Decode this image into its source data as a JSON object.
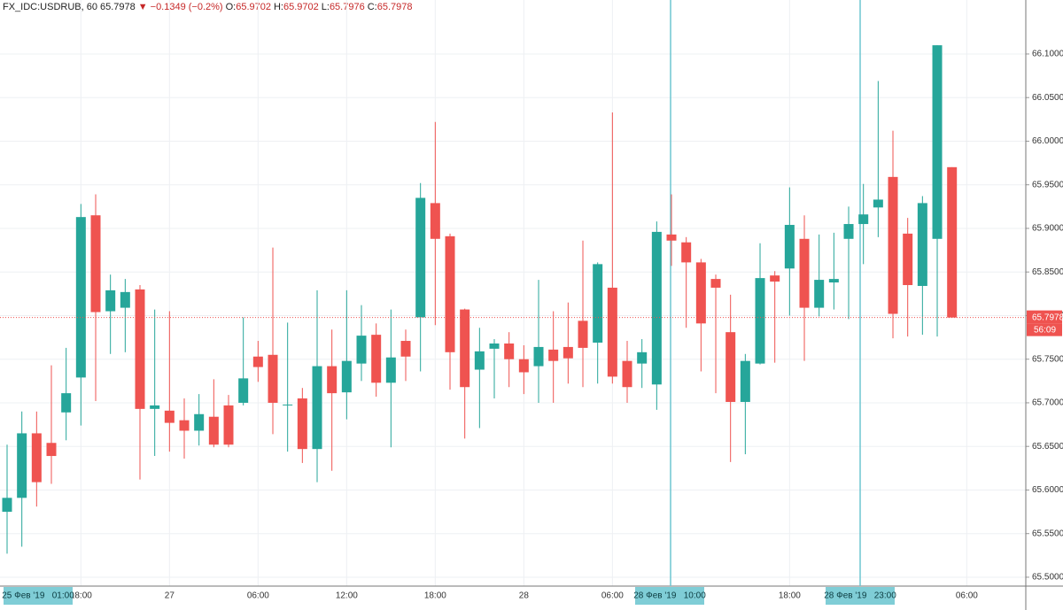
{
  "chart_data": {
    "type": "candlestick",
    "header": {
      "symbol": "FX_IDC:USDRUB, 60",
      "price": "65.7978",
      "arrow": "▼",
      "change": "−0.1349 (−0.2%)",
      "ohlc": [
        {
          "key": "O:",
          "value": "65.9702"
        },
        {
          "key": "H:",
          "value": "65.9702"
        },
        {
          "key": "L:",
          "value": "65.7976"
        },
        {
          "key": "C:",
          "value": "65.7978"
        }
      ]
    },
    "categories": [
      null,
      null,
      null,
      null,
      null,
      "18:00",
      null,
      null,
      null,
      null,
      null,
      "27",
      null,
      null,
      null,
      null,
      null,
      "06:00",
      null,
      null,
      null,
      null,
      null,
      "12:00",
      null,
      null,
      null,
      null,
      null,
      "18:00",
      null,
      null,
      null,
      null,
      null,
      "28",
      null,
      null,
      null,
      null,
      null,
      "06:00",
      null,
      null,
      null,
      null,
      null,
      null,
      null,
      null,
      null,
      null,
      null,
      "18:00",
      null,
      null,
      null,
      null,
      null,
      null,
      null,
      null,
      null,
      null,
      null,
      "06:00"
    ],
    "open": [
      65.575,
      65.591,
      65.665,
      65.654,
      65.689,
      65.729,
      65.915,
      65.805,
      65.809,
      65.83,
      65.693,
      65.691,
      65.68,
      65.668,
      65.684,
      65.697,
      65.7,
      65.753,
      65.755,
      65.697,
      65.705,
      65.647,
      65.742,
      65.712,
      65.745,
      65.778,
      65.723,
      65.771,
      65.798,
      65.929,
      65.891,
      65.807,
      65.738,
      65.762,
      65.768,
      65.75,
      65.742,
      65.761,
      65.764,
      65.794,
      65.769,
      65.832,
      65.748,
      65.745,
      65.721,
      65.893,
      65.884,
      65.861,
      65.842,
      65.781,
      65.701,
      65.745,
      65.846,
      65.854,
      65.888,
      65.809,
      65.838,
      65.888,
      65.905,
      65.924,
      65.959,
      65.894,
      65.834,
      65.888,
      65.9702,
      null
    ],
    "high": [
      65.652,
      65.69,
      65.69,
      65.743,
      65.763,
      65.928,
      65.939,
      65.847,
      65.842,
      65.835,
      65.807,
      65.805,
      65.705,
      65.71,
      65.727,
      65.709,
      65.798,
      65.771,
      65.878,
      65.792,
      65.717,
      65.829,
      65.784,
      65.829,
      65.812,
      65.791,
      65.807,
      65.784,
      65.952,
      66.022,
      65.894,
      65.808,
      65.786,
      65.773,
      65.781,
      65.766,
      65.841,
      65.805,
      65.815,
      65.886,
      65.861,
      66.033,
      65.771,
      65.773,
      65.908,
      65.939,
      65.89,
      65.865,
      65.847,
      65.824,
      65.756,
      65.883,
      65.851,
      65.947,
      65.915,
      65.893,
      65.895,
      65.925,
      65.951,
      66.069,
      66.012,
      65.912,
      65.937,
      66.11,
      65.9702,
      null
    ],
    "low": [
      65.527,
      65.535,
      65.581,
      65.607,
      65.657,
      65.674,
      65.702,
      65.756,
      65.758,
      65.612,
      65.639,
      65.644,
      65.636,
      65.651,
      65.649,
      65.649,
      65.697,
      65.724,
      65.664,
      65.644,
      65.631,
      65.609,
      65.622,
      65.681,
      65.725,
      65.707,
      65.649,
      65.725,
      65.736,
      65.789,
      65.715,
      65.659,
      65.671,
      65.705,
      65.718,
      65.71,
      65.7,
      65.7,
      65.722,
      65.718,
      65.722,
      65.722,
      65.7,
      65.717,
      65.692,
      65.857,
      65.786,
      65.736,
      65.711,
      65.632,
      65.641,
      65.744,
      65.746,
      65.8,
      65.748,
      65.799,
      65.807,
      65.796,
      65.859,
      65.89,
      65.774,
      65.776,
      65.778,
      65.776,
      65.7976,
      null
    ],
    "close": [
      65.591,
      65.665,
      65.609,
      65.639,
      65.711,
      65.913,
      65.804,
      65.829,
      65.827,
      65.693,
      65.697,
      65.677,
      65.668,
      65.687,
      65.652,
      65.652,
      65.728,
      65.741,
      65.7,
      65.698,
      65.647,
      65.742,
      65.711,
      65.748,
      65.777,
      65.723,
      65.752,
      65.753,
      65.935,
      65.888,
      65.758,
      65.718,
      65.759,
      65.768,
      65.75,
      65.735,
      65.764,
      65.748,
      65.751,
      65.763,
      65.859,
      65.73,
      65.718,
      65.758,
      65.896,
      65.886,
      65.861,
      65.791,
      65.832,
      65.701,
      65.748,
      65.843,
      65.839,
      65.904,
      65.809,
      65.841,
      65.842,
      65.905,
      65.916,
      65.933,
      65.802,
      65.835,
      65.929,
      66.11,
      65.7978,
      null
    ],
    "up_color": "#26a69a",
    "down_color": "#ef5350",
    "ylim": [
      65.4898,
      66.1619
    ],
    "yticks": [
      {
        "value": 65.5,
        "label": "65.5000"
      },
      {
        "value": 65.55,
        "label": "65.5500"
      },
      {
        "value": 65.6,
        "label": "65.6000"
      },
      {
        "value": 65.65,
        "label": "65.6500"
      },
      {
        "value": 65.7,
        "label": "65.7000"
      },
      {
        "value": 65.75,
        "label": "65.7500"
      },
      {
        "value": 65.8,
        "label": "65.8000"
      },
      {
        "value": 65.85,
        "label": "65.8500"
      },
      {
        "value": 65.9,
        "label": "65.9000"
      },
      {
        "value": 65.95,
        "label": "65.9500"
      },
      {
        "value": 66.0,
        "label": "66.0000"
      },
      {
        "value": 66.05,
        "label": "66.0500"
      },
      {
        "value": 66.1,
        "label": "66.1000"
      }
    ],
    "grid": true,
    "last_price": {
      "value": 65.7978,
      "label": "65.7978"
    },
    "countdown": "56:09",
    "crosshair_labels": [
      "25 Фев '19   01:00",
      "28 Фев '19   10:00",
      "28 Фев '19   23:00"
    ]
  }
}
